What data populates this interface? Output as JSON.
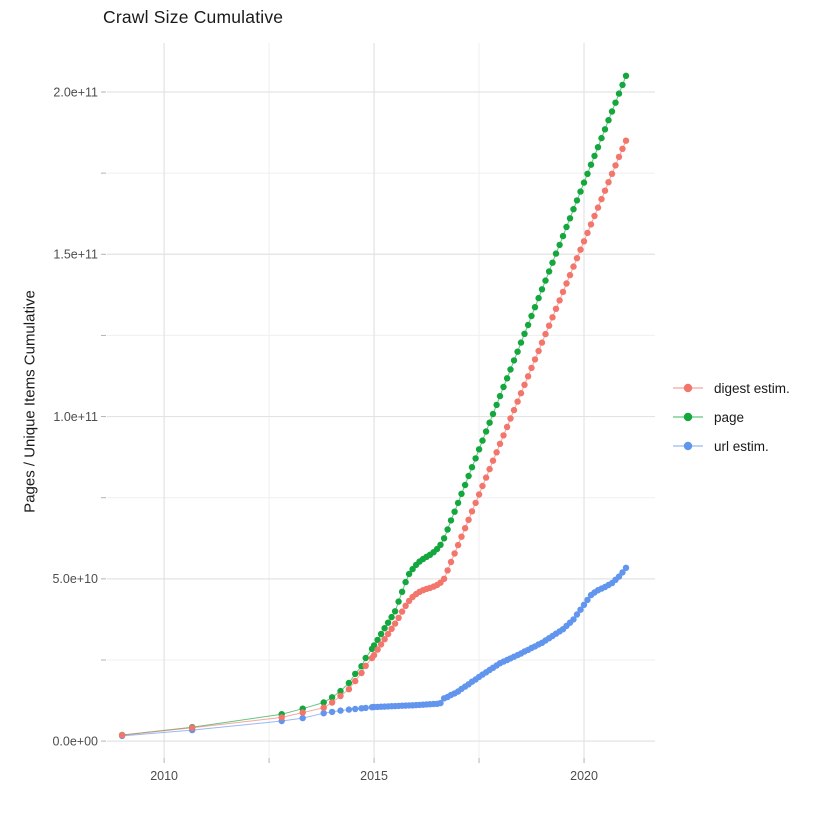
{
  "chart_data": {
    "type": "scatter",
    "title": "Crawl Size Cumulative",
    "ylabel": "Pages / Unique Items Cumulative",
    "xlabel": "",
    "grid": true,
    "legend_position": "right",
    "xlim": [
      2008.64,
      2021.69
    ],
    "ylim": [
      -5200000000.0,
      215100000000.0
    ],
    "x_ticks": [
      {
        "value": 2010,
        "label": "2010"
      },
      {
        "value": 2015,
        "label": "2015"
      },
      {
        "value": 2020,
        "label": "2020"
      }
    ],
    "x_minor_ticks": [
      2012.5,
      2017.5
    ],
    "y_ticks": [
      {
        "value": 0.0,
        "label": "0.0e+00"
      },
      {
        "value": 50000000000.0,
        "label": "5.0e+10"
      },
      {
        "value": 100000000000.0,
        "label": "1.0e+11"
      },
      {
        "value": 150000000000.0,
        "label": "1.5e+11"
      },
      {
        "value": 200000000000.0,
        "label": "2.0e+11"
      }
    ],
    "y_minor_ticks": [
      25000000000.0,
      75000000000.0,
      125000000000.0,
      175000000000.0
    ],
    "y_unit": "pages (y_billions values are in units of 1e9)",
    "x": [
      2009.0,
      2010.67,
      2012.8,
      2013.3,
      2013.8,
      2014.0,
      2014.2,
      2014.4,
      2014.55,
      2014.7,
      2014.8,
      2014.95,
      2015.0,
      2015.083,
      2015.167,
      2015.25,
      2015.333,
      2015.417,
      2015.5,
      2015.583,
      2015.667,
      2015.75,
      2015.833,
      2015.917,
      2016.0,
      2016.083,
      2016.167,
      2016.25,
      2016.333,
      2016.417,
      2016.5,
      2016.583,
      2016.667,
      2016.75,
      2016.833,
      2016.917,
      2017.0,
      2017.083,
      2017.167,
      2017.25,
      2017.333,
      2017.417,
      2017.5,
      2017.583,
      2017.667,
      2017.75,
      2017.833,
      2017.917,
      2018.0,
      2018.083,
      2018.167,
      2018.25,
      2018.333,
      2018.417,
      2018.5,
      2018.583,
      2018.667,
      2018.75,
      2018.833,
      2018.917,
      2019.0,
      2019.083,
      2019.167,
      2019.25,
      2019.333,
      2019.417,
      2019.5,
      2019.583,
      2019.667,
      2019.75,
      2019.833,
      2019.917,
      2020.0,
      2020.083,
      2020.167,
      2020.25,
      2020.333,
      2020.417,
      2020.5,
      2020.583,
      2020.667,
      2020.75,
      2020.833,
      2020.917,
      2021.0
    ],
    "series": [
      {
        "name": "digest estim.",
        "color": "#F3766C",
        "y_billions": [
          1.85,
          4.1,
          7.3,
          8.8,
          10.3,
          11.9,
          13.9,
          16.0,
          18.5,
          21.0,
          23.2,
          25.6,
          26.5,
          28.2,
          29.8,
          31.4,
          33.0,
          34.6,
          36.2,
          38.0,
          39.9,
          41.7,
          43.2,
          44.4,
          45.3,
          46.0,
          46.5,
          46.9,
          47.2,
          47.6,
          48.1,
          48.8,
          50.0,
          52.6,
          55.2,
          57.8,
          60.4,
          63.0,
          65.6,
          68.2,
          70.8,
          73.4,
          76.0,
          78.6,
          81.2,
          83.8,
          86.4,
          89.0,
          91.6,
          94.2,
          96.8,
          99.4,
          102.0,
          104.6,
          107.2,
          109.8,
          112.4,
          115.0,
          117.6,
          120.2,
          122.8,
          125.4,
          128.0,
          130.6,
          133.2,
          135.8,
          138.4,
          141.0,
          143.6,
          146.2,
          148.8,
          151.4,
          154.0,
          156.6,
          159.2,
          161.8,
          164.4,
          167.0,
          169.6,
          172.2,
          174.8,
          177.4,
          180.0,
          182.5,
          185.0
        ]
      },
      {
        "name": "page",
        "color": "#14A73E",
        "y_billions": [
          1.9,
          4.3,
          8.3,
          10.0,
          11.9,
          13.5,
          15.4,
          17.9,
          20.7,
          23.1,
          25.6,
          28.4,
          29.5,
          31.2,
          33.0,
          34.8,
          36.5,
          38.2,
          40.0,
          43.0,
          46.0,
          49.0,
          51.5,
          53.0,
          54.3,
          55.3,
          56.1,
          56.8,
          57.4,
          58.2,
          59.2,
          60.5,
          62.5,
          65.2,
          68.0,
          70.7,
          73.4,
          76.2,
          78.9,
          81.7,
          84.4,
          87.1,
          89.9,
          92.6,
          95.4,
          98.1,
          100.8,
          103.6,
          106.3,
          109.1,
          111.8,
          114.5,
          117.3,
          120.0,
          122.8,
          125.5,
          128.2,
          131.0,
          133.7,
          136.5,
          139.2,
          141.9,
          144.7,
          147.4,
          150.2,
          152.9,
          155.6,
          158.4,
          161.1,
          163.9,
          166.6,
          169.3,
          172.1,
          174.8,
          177.6,
          180.3,
          183.0,
          185.8,
          188.5,
          191.3,
          194.0,
          196.7,
          199.5,
          202.2,
          205.0
        ]
      },
      {
        "name": "url estim.",
        "color": "#6195EE",
        "y_billions": [
          1.6,
          3.4,
          6.2,
          7.1,
          8.6,
          9.0,
          9.4,
          9.7,
          9.9,
          10.1,
          10.25,
          10.45,
          10.5,
          10.55,
          10.6,
          10.65,
          10.7,
          10.75,
          10.8,
          10.85,
          10.9,
          10.95,
          11.0,
          11.05,
          11.1,
          11.17,
          11.23,
          11.3,
          11.37,
          11.43,
          11.5,
          11.7,
          13.2,
          13.6,
          14.2,
          14.7,
          15.3,
          16.1,
          16.8,
          17.5,
          18.3,
          19.0,
          19.8,
          20.5,
          21.2,
          21.9,
          22.6,
          23.3,
          24.0,
          24.5,
          25.0,
          25.5,
          26.0,
          26.5,
          27.0,
          27.6,
          28.1,
          28.7,
          29.2,
          29.8,
          30.3,
          31.0,
          31.7,
          32.4,
          33.1,
          33.8,
          34.5,
          35.5,
          36.5,
          37.5,
          39.0,
          40.5,
          42.0,
          43.5,
          45.0,
          45.8,
          46.5,
          47.0,
          47.5,
          48.1,
          48.7,
          49.7,
          50.7,
          52.0,
          53.4
        ]
      }
    ],
    "style": {
      "major_grid_color": "#E3E3E3",
      "minor_grid_color": "#EFEFEF",
      "tick_color": "#B3B3B3",
      "tick_label_color": "#4D4D4D",
      "point_radius": 3.2
    }
  }
}
